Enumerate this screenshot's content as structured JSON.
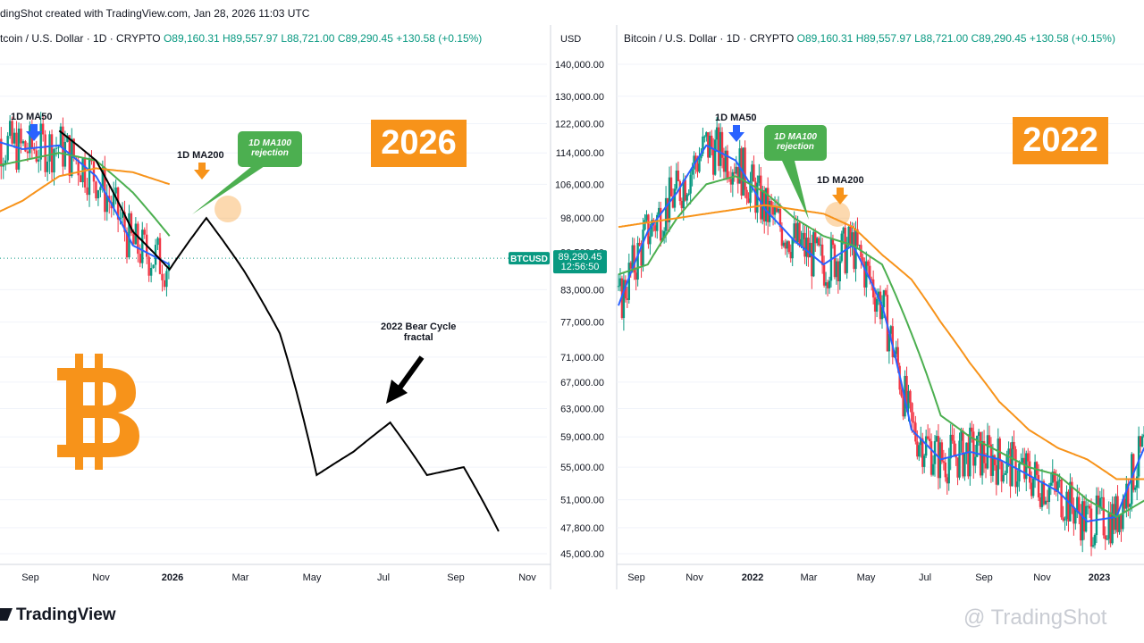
{
  "header": {
    "snapshot_line": "dingShot created with TradingView.com, Jan 28, 2026 11:03 UTC"
  },
  "left_panel": {
    "symbol": "tcoin / U.S. Dollar · 1D · CRYPTO",
    "open": "O89,160.31",
    "high": "H89,557.97",
    "low": "L88,721.00",
    "close": "C89,290.45",
    "change": "+130.58 (+0.15%)",
    "year_label": "2026",
    "ma50_label": "1D MA50",
    "ma200_label": "1D MA200",
    "ma100_badge": [
      "1D MA100",
      "rejection"
    ],
    "fractal_label": [
      "2022 Bear Cycle",
      "fractal"
    ],
    "x_ticks": [
      "Sep",
      "Nov",
      "2026",
      "Mar",
      "May",
      "Jul",
      "Sep",
      "Nov"
    ]
  },
  "price_axis": {
    "currency": "USD",
    "ticks": [
      "140,000.00",
      "130,000.00",
      "122,000.00",
      "114,000.00",
      "106,000.00",
      "98,000.00",
      "83,000.00",
      "77,000.00",
      "71,000.00",
      "67,000.00",
      "63,000.00",
      "59,000.00",
      "55,000.00",
      "51,000.00",
      "47,800.00",
      "45,000.00"
    ],
    "partial_tick": "90,500.00",
    "ticker_tag": "BTCUSD",
    "last_price": "89,290.45",
    "countdown": "12:56:50"
  },
  "right_panel": {
    "symbol": "Bitcoin / U.S. Dollar · 1D · CRYPTO",
    "open": "O89,160.31",
    "high": "H89,557.97",
    "low": "L88,721.00",
    "close": "C89,290.45",
    "change": "+130.58 (+0.15%)",
    "year_label": "2022",
    "ma50_label": "1D MA50",
    "ma200_label": "1D MA200",
    "ma100_badge": [
      "1D MA100",
      "rejection"
    ],
    "x_ticks": [
      "Sep",
      "Nov",
      "2022",
      "Mar",
      "May",
      "Jul",
      "Sep",
      "Nov",
      "2023"
    ]
  },
  "footer": {
    "logo_text": "TradingView",
    "watermark": "@ TradingShot"
  },
  "colors": {
    "ma50": "#2962ff",
    "ma100": "#4caf50",
    "ma200": "#f7931a",
    "candle_up": "#089981",
    "candle_down": "#f23645",
    "fractal_line": "#000000",
    "bitcoin_orange": "#f7931a",
    "price_tag": "#089981"
  },
  "chart_data": [
    {
      "type": "line",
      "title": "",
      "ylabel": "USD",
      "ylim": [
        45000,
        140000
      ],
      "y_scale": "log",
      "x": [
        "2025-08-01",
        "2025-09-01",
        "2025-10-06",
        "2025-11-01",
        "2025-12-01",
        "2026-01-01",
        "2026-02-01",
        "2026-03-01",
        "2026-04-01",
        "2026-05-01",
        "2026-06-01",
        "2026-07-01",
        "2026-08-01",
        "2026-09-01",
        "2026-10-01"
      ],
      "series": [
        {
          "name": "1D MA50",
          "values": [
            118000,
            115000,
            116000,
            108000,
            92000,
            88000,
            null,
            null,
            null,
            null,
            null,
            null,
            null,
            null,
            null
          ]
        },
        {
          "name": "1D MA100",
          "values": [
            110000,
            112000,
            114000,
            112000,
            104000,
            94000,
            null,
            null,
            null,
            null,
            null,
            null,
            null,
            null,
            null
          ]
        },
        {
          "name": "1D MA200",
          "values": [
            98000,
            102000,
            108000,
            110000,
            109000,
            106000,
            null,
            null,
            null,
            null,
            null,
            null,
            null,
            null,
            null
          ]
        },
        {
          "name": "2022 Bear Cycle fractal",
          "values": [
            null,
            null,
            120000,
            112000,
            95000,
            87000,
            98000,
            87000,
            75000,
            54000,
            57000,
            61000,
            54000,
            55000,
            47000
          ]
        }
      ]
    },
    {
      "type": "line",
      "title": "",
      "ylabel": "USD",
      "y_scale": "log",
      "x": [
        "2021-08-01",
        "2021-09-01",
        "2021-10-01",
        "2021-11-01",
        "2021-12-01",
        "2022-01-01",
        "2022-02-01",
        "2022-03-01",
        "2022-04-01",
        "2022-05-01",
        "2022-06-01",
        "2022-07-01",
        "2022-08-01",
        "2022-09-01",
        "2022-10-01",
        "2022-11-01",
        "2022-12-01",
        "2023-01-01",
        "2023-02-01"
      ],
      "series": [
        {
          "name": "1D MA50",
          "values": [
            80000,
            95000,
            104000,
            116000,
            112000,
            100000,
            93000,
            88000,
            92000,
            80000,
            60000,
            56000,
            57000,
            56000,
            54000,
            52000,
            48500,
            49000,
            58000
          ]
        },
        {
          "name": "1D MA100",
          "values": [
            86000,
            88000,
            98000,
            106000,
            108000,
            104000,
            98000,
            94000,
            92000,
            88000,
            75000,
            62000,
            59000,
            57000,
            55000,
            54000,
            51000,
            49000,
            51000
          ]
        },
        {
          "name": "1D MA200",
          "values": [
            96000,
            97000,
            98000,
            99000,
            100000,
            101000,
            100000,
            99000,
            96000,
            90000,
            85000,
            77000,
            70000,
            64000,
            60000,
            57500,
            56000,
            53500,
            53500
          ]
        }
      ]
    }
  ]
}
